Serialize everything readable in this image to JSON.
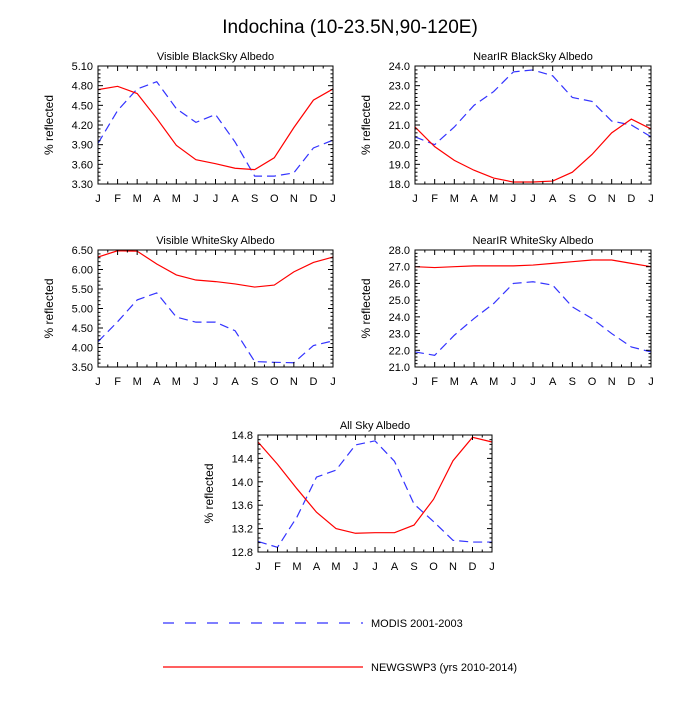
{
  "title": "Indochina (10-23.5N,90-120E)",
  "legend": {
    "placement": "bottom-center",
    "entries": [
      {
        "label": "MODIS 2001-2003",
        "color": "#3333ff",
        "style": "dashed"
      },
      {
        "label": "NEWGSWP3 (yrs 2010-2014)",
        "color": "#ff0000",
        "style": "solid"
      }
    ]
  },
  "chart_data": [
    {
      "type": "line",
      "title": "Visible BlackSky Albedo",
      "ylabel": "% reflected",
      "xlabel": "",
      "categories": [
        "J",
        "F",
        "M",
        "A",
        "M",
        "J",
        "J",
        "A",
        "S",
        "O",
        "N",
        "D",
        "J"
      ],
      "ylim": [
        3.3,
        5.1
      ],
      "yticks": [
        3.3,
        3.6,
        3.9,
        4.2,
        4.5,
        4.8,
        5.1
      ],
      "ytick_labels": [
        "3.30",
        "3.60",
        "3.90",
        "4.20",
        "4.50",
        "4.80",
        "5.10"
      ],
      "series": [
        {
          "name": "MODIS 2001-2003",
          "color": "#3333ff",
          "style": "dashed",
          "values": [
            3.92,
            4.42,
            4.75,
            4.86,
            4.45,
            4.24,
            4.36,
            3.94,
            3.42,
            3.42,
            3.47,
            3.85,
            3.97
          ]
        },
        {
          "name": "NEWGSWP3 (yrs 2010-2014)",
          "color": "#ff0000",
          "style": "solid",
          "values": [
            4.74,
            4.79,
            4.68,
            4.3,
            3.89,
            3.67,
            3.61,
            3.54,
            3.52,
            3.7,
            4.16,
            4.58,
            4.75
          ]
        }
      ]
    },
    {
      "type": "line",
      "title": "NearIR BlackSky Albedo",
      "ylabel": "% reflected",
      "xlabel": "",
      "categories": [
        "J",
        "F",
        "M",
        "A",
        "M",
        "J",
        "J",
        "A",
        "S",
        "O",
        "N",
        "D",
        "J"
      ],
      "ylim": [
        18.0,
        24.0
      ],
      "yticks": [
        18,
        19,
        20,
        21,
        22,
        23,
        24
      ],
      "ytick_labels": [
        "18.0",
        "19.0",
        "20.0",
        "21.0",
        "22.0",
        "23.0",
        "24.0"
      ],
      "series": [
        {
          "name": "MODIS 2001-2003",
          "color": "#3333ff",
          "style": "dashed",
          "values": [
            20.4,
            20.0,
            20.9,
            22.0,
            22.7,
            23.7,
            23.8,
            23.5,
            22.4,
            22.2,
            21.2,
            21.0,
            20.4
          ]
        },
        {
          "name": "NEWGSWP3 (yrs 2010-2014)",
          "color": "#ff0000",
          "style": "solid",
          "values": [
            20.9,
            19.9,
            19.2,
            18.7,
            18.3,
            18.1,
            18.1,
            18.15,
            18.6,
            19.5,
            20.6,
            21.3,
            20.8
          ]
        }
      ]
    },
    {
      "type": "line",
      "title": "Visible WhiteSky Albedo",
      "ylabel": "% reflected",
      "xlabel": "",
      "categories": [
        "J",
        "F",
        "M",
        "A",
        "M",
        "J",
        "J",
        "A",
        "S",
        "O",
        "N",
        "D",
        "J"
      ],
      "ylim": [
        3.5,
        6.5
      ],
      "yticks": [
        3.5,
        4.0,
        4.5,
        5.0,
        5.5,
        6.0,
        6.5
      ],
      "ytick_labels": [
        "3.50",
        "4.00",
        "4.50",
        "5.00",
        "5.50",
        "6.00",
        "6.50"
      ],
      "series": [
        {
          "name": "MODIS 2001-2003",
          "color": "#3333ff",
          "style": "dashed",
          "values": [
            4.15,
            4.66,
            5.22,
            5.4,
            4.78,
            4.65,
            4.65,
            4.43,
            3.64,
            3.62,
            3.61,
            4.05,
            4.17
          ]
        },
        {
          "name": "NEWGSWP3 (yrs 2010-2014)",
          "color": "#ff0000",
          "style": "solid",
          "values": [
            6.32,
            6.48,
            6.47,
            6.14,
            5.86,
            5.73,
            5.69,
            5.63,
            5.55,
            5.6,
            5.94,
            6.18,
            6.32
          ]
        }
      ]
    },
    {
      "type": "line",
      "title": "NearIR WhiteSky Albedo",
      "ylabel": "% reflected",
      "xlabel": "",
      "categories": [
        "J",
        "F",
        "M",
        "A",
        "M",
        "J",
        "J",
        "A",
        "S",
        "O",
        "N",
        "D",
        "J"
      ],
      "ylim": [
        21.0,
        28.0
      ],
      "yticks": [
        21,
        22,
        23,
        24,
        25,
        26,
        27,
        28
      ],
      "ytick_labels": [
        "21.0",
        "22.0",
        "23.0",
        "24.0",
        "25.0",
        "26.0",
        "27.0",
        "28.0"
      ],
      "series": [
        {
          "name": "MODIS 2001-2003",
          "color": "#3333ff",
          "style": "dashed",
          "values": [
            21.9,
            21.7,
            22.9,
            23.9,
            24.8,
            26.0,
            26.1,
            25.9,
            24.6,
            23.9,
            23.0,
            22.2,
            21.9
          ]
        },
        {
          "name": "NEWGSWP3 (yrs 2010-2014)",
          "color": "#ff0000",
          "style": "solid",
          "values": [
            27.0,
            26.95,
            27.0,
            27.05,
            27.05,
            27.05,
            27.1,
            27.2,
            27.3,
            27.4,
            27.4,
            27.2,
            27.0
          ]
        }
      ]
    },
    {
      "type": "line",
      "title": "All Sky Albedo",
      "ylabel": "% reflected",
      "xlabel": "",
      "categories": [
        "J",
        "F",
        "M",
        "A",
        "M",
        "J",
        "J",
        "A",
        "S",
        "O",
        "N",
        "D",
        "J"
      ],
      "ylim": [
        12.8,
        14.8
      ],
      "yticks": [
        12.8,
        13.2,
        13.6,
        14.0,
        14.4,
        14.8
      ],
      "ytick_labels": [
        "12.8",
        "13.2",
        "13.6",
        "14.0",
        "14.4",
        "14.8"
      ],
      "series": [
        {
          "name": "MODIS 2001-2003",
          "color": "#3333ff",
          "style": "dashed",
          "values": [
            12.98,
            12.88,
            13.4,
            14.08,
            14.2,
            14.63,
            14.7,
            14.35,
            13.62,
            13.32,
            13.0,
            12.97,
            12.97
          ]
        },
        {
          "name": "NEWGSWP3 (yrs 2010-2014)",
          "color": "#ff0000",
          "style": "solid",
          "values": [
            14.68,
            14.3,
            13.88,
            13.48,
            13.2,
            13.12,
            13.13,
            13.13,
            13.26,
            13.7,
            14.36,
            14.76,
            14.68
          ]
        }
      ]
    }
  ]
}
